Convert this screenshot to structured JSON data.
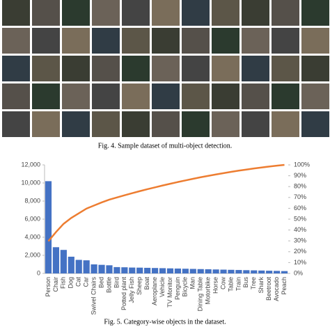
{
  "figure_top": {
    "caption": "Fig. 4.    Sample dataset of multi-object detection."
  },
  "chart_data": {
    "type": "pareto",
    "caption": "Fig. 5.    Category-wise objects in the dataset.",
    "categories": [
      "Person",
      "Chair",
      "Fish",
      "Dog",
      "Cat",
      "Car",
      "Swivel Chairs",
      "Bed",
      "Bottle",
      "Bird",
      "Potted plant",
      "Jelly Fish",
      "Sheep",
      "Boat",
      "Aeroplane",
      "Vehicle",
      "TV Monitor",
      "Penguin",
      "Bicycle",
      "Man",
      "Dining Table",
      "Motorbike",
      "Horse",
      "Cow",
      "Table",
      "Train",
      "Bus",
      "Tree",
      "Shark",
      "Beetroot",
      "Avocado",
      "Peach"
    ],
    "series": [
      {
        "color": "#4472c4",
        "values": [
          10200,
          2900,
          2600,
          1850,
          1500,
          1450,
          1000,
          950,
          900,
          700,
          680,
          650,
          640,
          620,
          600,
          580,
          560,
          540,
          520,
          500,
          480,
          460,
          440,
          420,
          400,
          380,
          360,
          340,
          320,
          300,
          280,
          260
        ]
      },
      {
        "color": "#ed7d31",
        "axis": "y2",
        "values": [
          29.7,
          38.1,
          45.7,
          51.1,
          55.4,
          59.7,
          62.6,
          65.4,
          68.0,
          70.0,
          72.0,
          73.9,
          75.8,
          77.6,
          79.3,
          81.0,
          82.6,
          84.2,
          85.7,
          87.2,
          88.6,
          89.9,
          91.2,
          92.4,
          93.6,
          94.7,
          95.7,
          96.7,
          97.6,
          98.5,
          99.3,
          100
        ]
      }
    ],
    "ylim": [
      0,
      12000
    ],
    "yticks": [
      {
        "value": 0,
        "label": "0"
      },
      {
        "value": 2000,
        "label": "2,000"
      },
      {
        "value": 4000,
        "label": "4,000"
      },
      {
        "value": 6000,
        "label": "6,000"
      },
      {
        "value": 8000,
        "label": "8,000"
      },
      {
        "value": 10000,
        "label": "10,000"
      },
      {
        "value": 12000,
        "label": "12,000"
      }
    ],
    "y2lim": [
      0,
      100
    ],
    "y2ticks": [
      {
        "value": 0,
        "label": "0%"
      },
      {
        "value": 10,
        "label": "10%"
      },
      {
        "value": 20,
        "label": "20%"
      },
      {
        "value": 30,
        "label": "30%"
      },
      {
        "value": 40,
        "label": "40%"
      },
      {
        "value": 50,
        "label": "50%"
      },
      {
        "value": 60,
        "label": "60%"
      },
      {
        "value": 70,
        "label": "70%"
      },
      {
        "value": 80,
        "label": "80%"
      },
      {
        "value": 90,
        "label": "90%"
      },
      {
        "value": 100,
        "label": "100%"
      }
    ]
  }
}
